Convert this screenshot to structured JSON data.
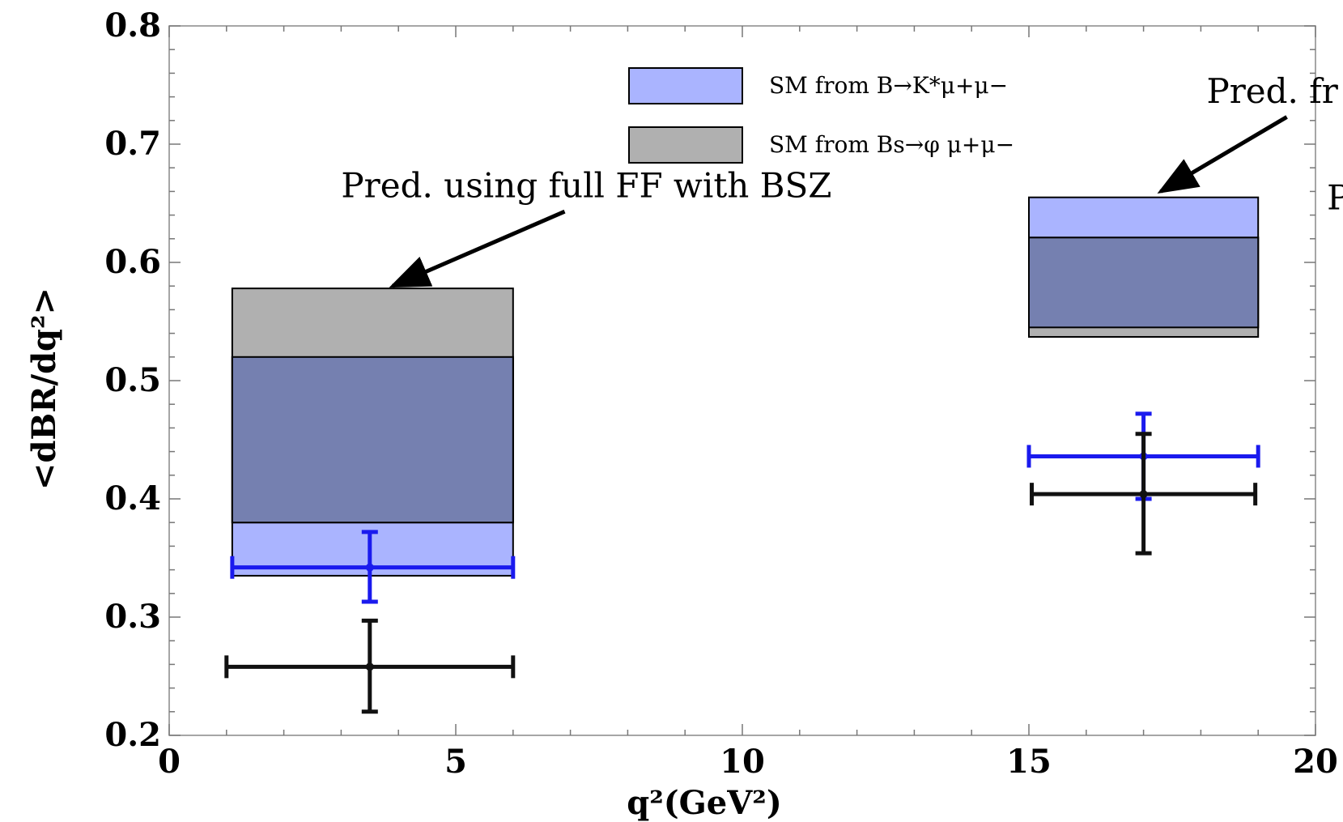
{
  "chart_data": {
    "type": "bar",
    "xlabel": "q²(GeV²)",
    "ylabel": "<dBR/dq²>",
    "xlim": [
      0,
      20
    ],
    "ylim": [
      0.2,
      0.8
    ],
    "x_ticks": [
      "0",
      "5",
      "10",
      "15",
      "20"
    ],
    "y_ticks": [
      "0.2",
      "0.3",
      "0.4",
      "0.5",
      "0.6",
      "0.7",
      "0.8"
    ],
    "x_tick_values": [
      0,
      5,
      10,
      15,
      20
    ],
    "y_tick_values": [
      0.2,
      0.3,
      0.4,
      0.5,
      0.6,
      0.7,
      0.8
    ],
    "legend": [
      {
        "label": "SM from B→K*μ+μ−",
        "color": "#aab4ff"
      },
      {
        "label": "SM from Bs→φ μ+μ−",
        "color": "#b0b0b0"
      }
    ],
    "bands": [
      {
        "series": "SM from B→K*μ+μ−",
        "x": [
          1.1,
          6.0
        ],
        "y": [
          0.335,
          0.52
        ],
        "color": "#aab4ff"
      },
      {
        "series": "SM from Bs→φ μ+μ−",
        "x": [
          1.1,
          6.0
        ],
        "y": [
          0.38,
          0.578
        ],
        "color": "#b0b0b0"
      },
      {
        "series": "SM from B→K*μ+μ−",
        "x": [
          15.0,
          19.0
        ],
        "y": [
          0.545,
          0.655
        ],
        "color": "#aab4ff"
      },
      {
        "series": "SM from Bs→φ μ+μ−",
        "x": [
          15.0,
          19.0
        ],
        "y": [
          0.537,
          0.621
        ],
        "color": "#b0b0b0"
      }
    ],
    "overlap_color": "#7580b0",
    "points": [
      {
        "x": 3.5,
        "y": 0.342,
        "xerr": [
          1.1,
          6.0
        ],
        "yerr": [
          0.313,
          0.372
        ],
        "color": "#1a1aee"
      },
      {
        "x": 3.5,
        "y": 0.258,
        "xerr": [
          1.0,
          6.0
        ],
        "yerr": [
          0.22,
          0.297
        ],
        "color": "#111111"
      },
      {
        "x": 17.0,
        "y": 0.436,
        "xerr": [
          15.0,
          19.0
        ],
        "yerr": [
          0.4,
          0.472
        ],
        "color": "#1a1aee"
      },
      {
        "x": 17.0,
        "y": 0.404,
        "xerr": [
          15.05,
          18.95
        ],
        "yerr": [
          0.354,
          0.455
        ],
        "color": "#111111"
      }
    ],
    "annotations": [
      {
        "text": "Pred. using full FF with BSZ",
        "x": 3.0,
        "y": 0.655,
        "arrow_from": [
          6.9,
          0.643
        ],
        "arrow_to": [
          3.9,
          0.58
        ]
      },
      {
        "text": "Pred. fr",
        "x": 18.1,
        "y": 0.735,
        "arrow_from": [
          19.5,
          0.723
        ],
        "arrow_to": [
          17.3,
          0.66
        ]
      },
      {
        "text": "P",
        "x": 20.2,
        "y": 0.645
      }
    ],
    "grid": false,
    "legend_position": "top-center"
  }
}
